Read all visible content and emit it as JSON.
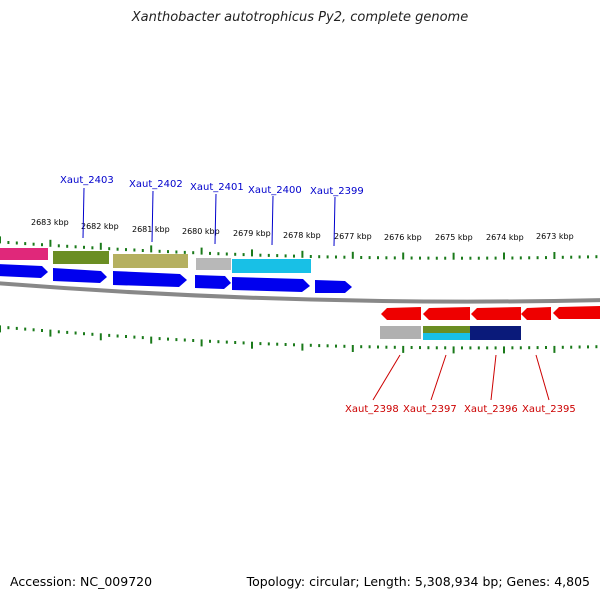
{
  "title": "Xanthobacter autotrophicus Py2, complete genome",
  "footer": {
    "accession": "Accession: NC_009720",
    "summary": "Topology: circular; Length: 5,308,934 bp; Genes: 4,805"
  },
  "colors": {
    "forward_label": "#0000cc",
    "reverse_label": "#cc0000",
    "tick": "#1a7a1a",
    "backbone": "#888888"
  },
  "scale_labels": [
    "2683 kbp",
    "2682 kbp",
    "2681 kbp",
    "2680 kbp",
    "2679 kbp",
    "2678 kbp",
    "2677 kbp",
    "2676 kbp",
    "2675 kbp",
    "2674 kbp",
    "2673 kbp"
  ],
  "forward_genes": [
    {
      "id": "Xaut_2403",
      "color": "blue"
    },
    {
      "id": "Xaut_2402",
      "color": "blue"
    },
    {
      "id": "Xaut_2401",
      "color": "blue"
    },
    {
      "id": "Xaut_2400",
      "color": "blue"
    },
    {
      "id": "Xaut_2399",
      "color": "blue"
    }
  ],
  "reverse_genes": [
    {
      "id": "Xaut_2398",
      "color": "red"
    },
    {
      "id": "Xaut_2397",
      "color": "red"
    },
    {
      "id": "Xaut_2396",
      "color": "red"
    },
    {
      "id": "Xaut_2395",
      "color": "red"
    }
  ]
}
